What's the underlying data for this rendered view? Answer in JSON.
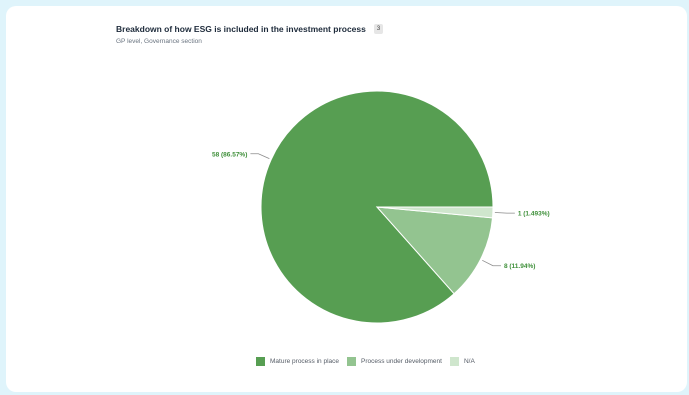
{
  "header": {
    "title": "Breakdown of how ESG is included in the investment process",
    "badge": "3",
    "subtitle": "GP level, Governance section"
  },
  "colors": {
    "mature": "#579e52",
    "development": "#93c490",
    "na": "#cfe6cd",
    "label": "#3e8f39"
  },
  "chart_data": {
    "type": "pie",
    "title": "Breakdown of how ESG is included in the investment process",
    "slices": [
      {
        "name": "Mature process in place",
        "value": 58,
        "label": "58 (86.57%)"
      },
      {
        "name": "Process under development",
        "value": 8,
        "label": "8 (11.94%)"
      },
      {
        "name": "N/A",
        "value": 1,
        "label": "1 (1.493%)"
      }
    ],
    "legend_position": "bottom"
  },
  "legend": [
    {
      "label": "Mature process in place"
    },
    {
      "label": "Process under development"
    },
    {
      "label": "N/A"
    }
  ]
}
